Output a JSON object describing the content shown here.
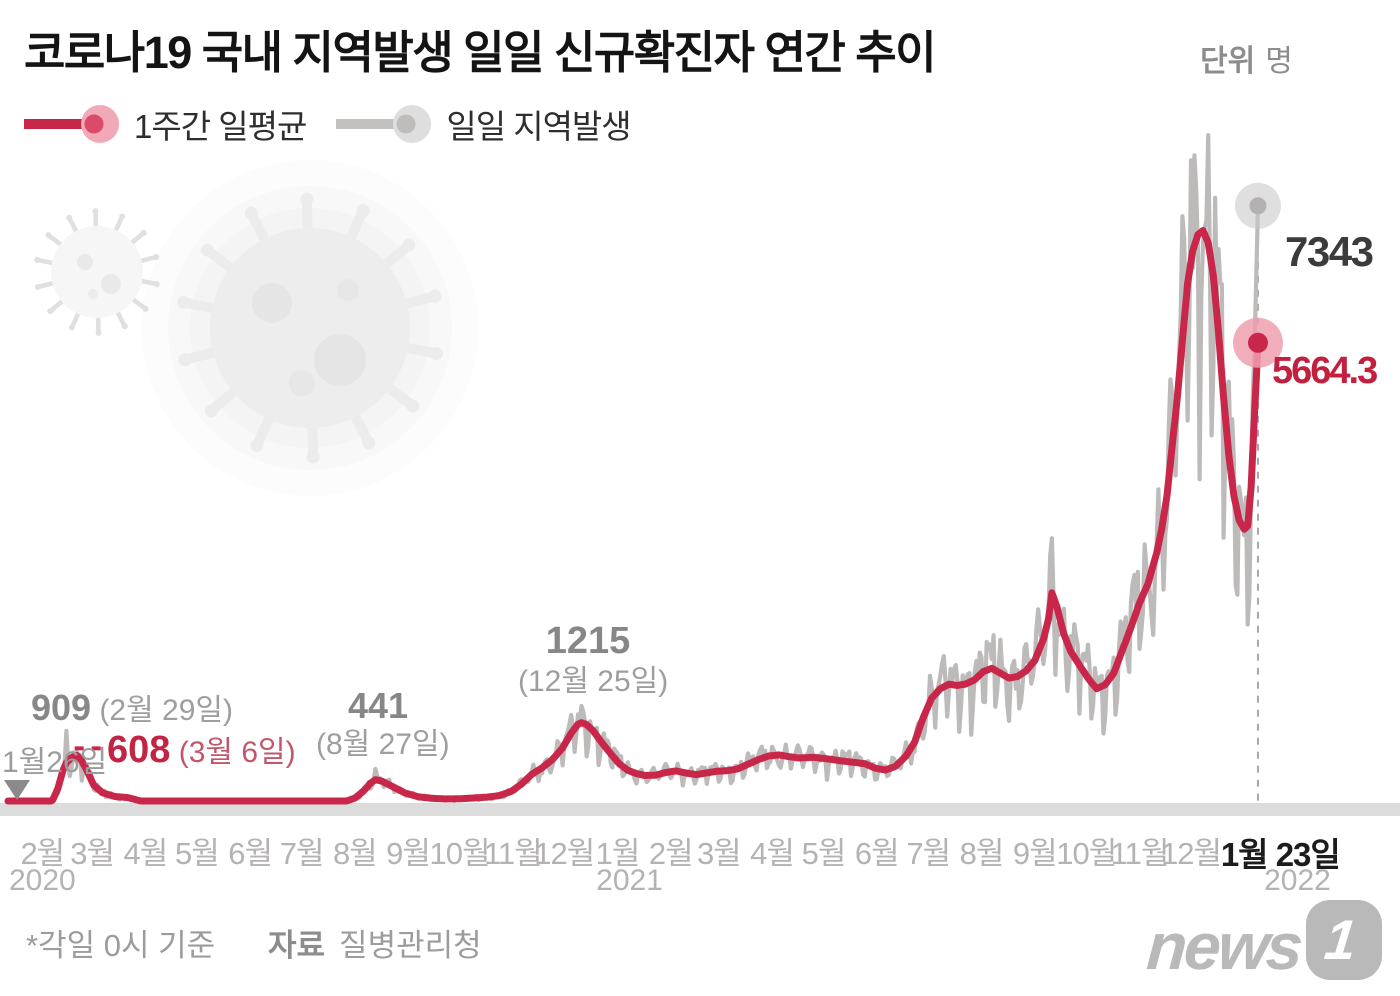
{
  "title": {
    "main": "코로나19 국내 지역발생 일일 신규확진자 연간 추이",
    "unit_label": "단위",
    "unit_value": "명"
  },
  "legend": {
    "items": [
      {
        "label": "1주간 일평균",
        "line_color": "#c9274a",
        "halo_color": "#f2a9b7",
        "dot_color": "#d94b68"
      },
      {
        "label": "일일 지역발생",
        "line_color": "#c3c0c0",
        "halo_color": "#dedede",
        "dot_color": "#bfbcbc"
      }
    ]
  },
  "annotations": {
    "start_label": "1월26일",
    "first_daily_peak_value": "909",
    "first_daily_peak_date": "(2월 29일)",
    "first_avg_peak_value": "608",
    "first_avg_peak_date": "(3월 6일)",
    "second_peak_value": "441",
    "second_peak_date": "(8월 27일)",
    "third_peak_value": "1215",
    "third_peak_date": "(12월 25일)",
    "latest_daily_value": "7343",
    "latest_avg_value": "5664.3"
  },
  "x_axis": {
    "months": [
      {
        "label": "2월",
        "day": 20
      },
      {
        "label": "3월",
        "day": 49
      },
      {
        "label": "4월",
        "day": 80
      },
      {
        "label": "5월",
        "day": 110
      },
      {
        "label": "6월",
        "day": 141
      },
      {
        "label": "7월",
        "day": 171
      },
      {
        "label": "8월",
        "day": 202
      },
      {
        "label": "9월",
        "day": 233
      },
      {
        "label": "10월",
        "day": 263
      },
      {
        "label": "11월",
        "day": 294
      },
      {
        "label": "12월",
        "day": 324
      },
      {
        "label": "1월",
        "day": 355
      },
      {
        "label": "2월",
        "day": 386
      },
      {
        "label": "3월",
        "day": 414
      },
      {
        "label": "4월",
        "day": 445
      },
      {
        "label": "5월",
        "day": 475
      },
      {
        "label": "6월",
        "day": 506
      },
      {
        "label": "7월",
        "day": 536
      },
      {
        "label": "8월",
        "day": 567
      },
      {
        "label": "9월",
        "day": 598
      },
      {
        "label": "10월",
        "day": 628
      },
      {
        "label": "11월",
        "day": 659
      },
      {
        "label": "12월",
        "day": 689
      }
    ],
    "final_label": {
      "label": "1월 23일",
      "day": 741
    },
    "years": [
      {
        "label": "2020",
        "day": 20
      },
      {
        "label": "2021",
        "day": 362
      },
      {
        "label": "2022",
        "day": 751
      }
    ]
  },
  "footer": {
    "note": "*각일 0시 기준",
    "source_label": "자료",
    "source_value": "질병관리청"
  },
  "logo": {
    "text": "news",
    "badge": "1"
  },
  "chart_data": {
    "type": "line",
    "title": "코로나19 국내 지역발생 일일 신규확진자 연간 추이",
    "unit": "명",
    "x_axis_definition": "days since 2020-01-26 (chart spans 2020-01-26 ~ 2022-01-23)",
    "ylim": [
      0,
      8200
    ],
    "grid": false,
    "legend_position": "top-left",
    "series": [
      {
        "name": "1주간 일평균",
        "type": "line",
        "color": "#c9274a",
        "points_day_value": [
          [
            0,
            5
          ],
          [
            6,
            3
          ],
          [
            14,
            3
          ],
          [
            22,
            12
          ],
          [
            26,
            60
          ],
          [
            29,
            200
          ],
          [
            32,
            420
          ],
          [
            34,
            520
          ],
          [
            37,
            580
          ],
          [
            40,
            608
          ],
          [
            43,
            540
          ],
          [
            46,
            420
          ],
          [
            50,
            240
          ],
          [
            55,
            150
          ],
          [
            62,
            105
          ],
          [
            70,
            90
          ],
          [
            78,
            45
          ],
          [
            88,
            20
          ],
          [
            98,
            10
          ],
          [
            108,
            12
          ],
          [
            118,
            22
          ],
          [
            128,
            35
          ],
          [
            138,
            44
          ],
          [
            148,
            42
          ],
          [
            158,
            34
          ],
          [
            168,
            29
          ],
          [
            178,
            26
          ],
          [
            188,
            28
          ],
          [
            196,
            40
          ],
          [
            202,
            85
          ],
          [
            207,
            170
          ],
          [
            211,
            265
          ],
          [
            214,
            310
          ],
          [
            218,
            290
          ],
          [
            224,
            225
          ],
          [
            231,
            150
          ],
          [
            239,
            100
          ],
          [
            247,
            82
          ],
          [
            255,
            74
          ],
          [
            263,
            76
          ],
          [
            271,
            86
          ],
          [
            279,
            96
          ],
          [
            286,
            115
          ],
          [
            293,
            165
          ],
          [
            299,
            255
          ],
          [
            305,
            375
          ],
          [
            311,
            455
          ],
          [
            317,
            555
          ],
          [
            323,
            700
          ],
          [
            328,
            880
          ],
          [
            332,
            990
          ],
          [
            334,
            1010
          ],
          [
            337,
            985
          ],
          [
            341,
            905
          ],
          [
            346,
            760
          ],
          [
            351,
            630
          ],
          [
            356,
            505
          ],
          [
            361,
            425
          ],
          [
            366,
            385
          ],
          [
            371,
            362
          ],
          [
            377,
            365
          ],
          [
            383,
            398
          ],
          [
            389,
            418
          ],
          [
            395,
            392
          ],
          [
            401,
            372
          ],
          [
            407,
            394
          ],
          [
            413,
            414
          ],
          [
            419,
            420
          ],
          [
            425,
            442
          ],
          [
            431,
            500
          ],
          [
            437,
            556
          ],
          [
            443,
            600
          ],
          [
            449,
            614
          ],
          [
            455,
            592
          ],
          [
            461,
            576
          ],
          [
            469,
            584
          ],
          [
            477,
            566
          ],
          [
            485,
            542
          ],
          [
            493,
            522
          ],
          [
            499,
            506
          ],
          [
            505,
            452
          ],
          [
            511,
            428
          ],
          [
            517,
            475
          ],
          [
            523,
            600
          ],
          [
            528,
            770
          ],
          [
            533,
            1070
          ],
          [
            538,
            1310
          ],
          [
            543,
            1425
          ],
          [
            548,
            1480
          ],
          [
            553,
            1465
          ],
          [
            558,
            1485
          ],
          [
            563,
            1535
          ],
          [
            568,
            1635
          ],
          [
            573,
            1675
          ],
          [
            578,
            1615
          ],
          [
            583,
            1555
          ],
          [
            588,
            1575
          ],
          [
            593,
            1645
          ],
          [
            598,
            1770
          ],
          [
            603,
            2030
          ],
          [
            606,
            2280
          ],
          [
            608,
            2600
          ],
          [
            611,
            2420
          ],
          [
            615,
            2090
          ],
          [
            619,
            1880
          ],
          [
            624,
            1715
          ],
          [
            629,
            1555
          ],
          [
            634,
            1425
          ],
          [
            639,
            1475
          ],
          [
            644,
            1615
          ],
          [
            649,
            1895
          ],
          [
            654,
            2175
          ],
          [
            659,
            2475
          ],
          [
            664,
            2715
          ],
          [
            669,
            3090
          ],
          [
            672,
            3390
          ],
          [
            675,
            3790
          ],
          [
            678,
            4390
          ],
          [
            681,
            4990
          ],
          [
            684,
            5690
          ],
          [
            687,
            6390
          ],
          [
            690,
            6790
          ],
          [
            693,
            6990
          ],
          [
            696,
            7040
          ],
          [
            699,
            6890
          ],
          [
            702,
            6490
          ],
          [
            705,
            5790
          ],
          [
            708,
            4990
          ],
          [
            711,
            4290
          ],
          [
            714,
            3790
          ],
          [
            717,
            3490
          ],
          [
            720,
            3380
          ],
          [
            722,
            3420
          ],
          [
            724,
            3890
          ],
          [
            726,
            4790
          ],
          [
            728,
            5664.3
          ]
        ],
        "endpoint": {
          "day": 728,
          "value": 5664.3,
          "date": "1월 23일"
        }
      },
      {
        "name": "일일 지역발생",
        "type": "line",
        "color": "#bdbaba",
        "definition": "daily local cases fluctuating around the 7-day average with a weekly reporting cycle",
        "weekday_variation_pct": 22,
        "key_daily_points_day_value": [
          [
            34,
            909
          ],
          [
            214,
            441
          ],
          [
            334,
            1215
          ],
          [
            608,
            3270
          ],
          [
            689,
            7900
          ],
          [
            726,
            5600
          ],
          [
            727,
            6500
          ],
          [
            728,
            7343
          ]
        ],
        "endpoint": {
          "day": 728,
          "value": 7343,
          "date": "1월 23일"
        }
      }
    ],
    "callouts": [
      {
        "series": "일일 지역발생",
        "value": 909,
        "date": "2월 29일"
      },
      {
        "series": "1주간 일평균",
        "value": 608,
        "date": "3월 6일"
      },
      {
        "series": "일일 지역발생",
        "value": 441,
        "date": "8월 27일"
      },
      {
        "series": "일일 지역발생",
        "value": 1215,
        "date": "12월 25일"
      },
      {
        "series": "일일 지역발생",
        "value": 7343,
        "date": "1월 23일"
      },
      {
        "series": "1주간 일평균",
        "value": 5664.3,
        "date": "1월 23일"
      }
    ]
  }
}
